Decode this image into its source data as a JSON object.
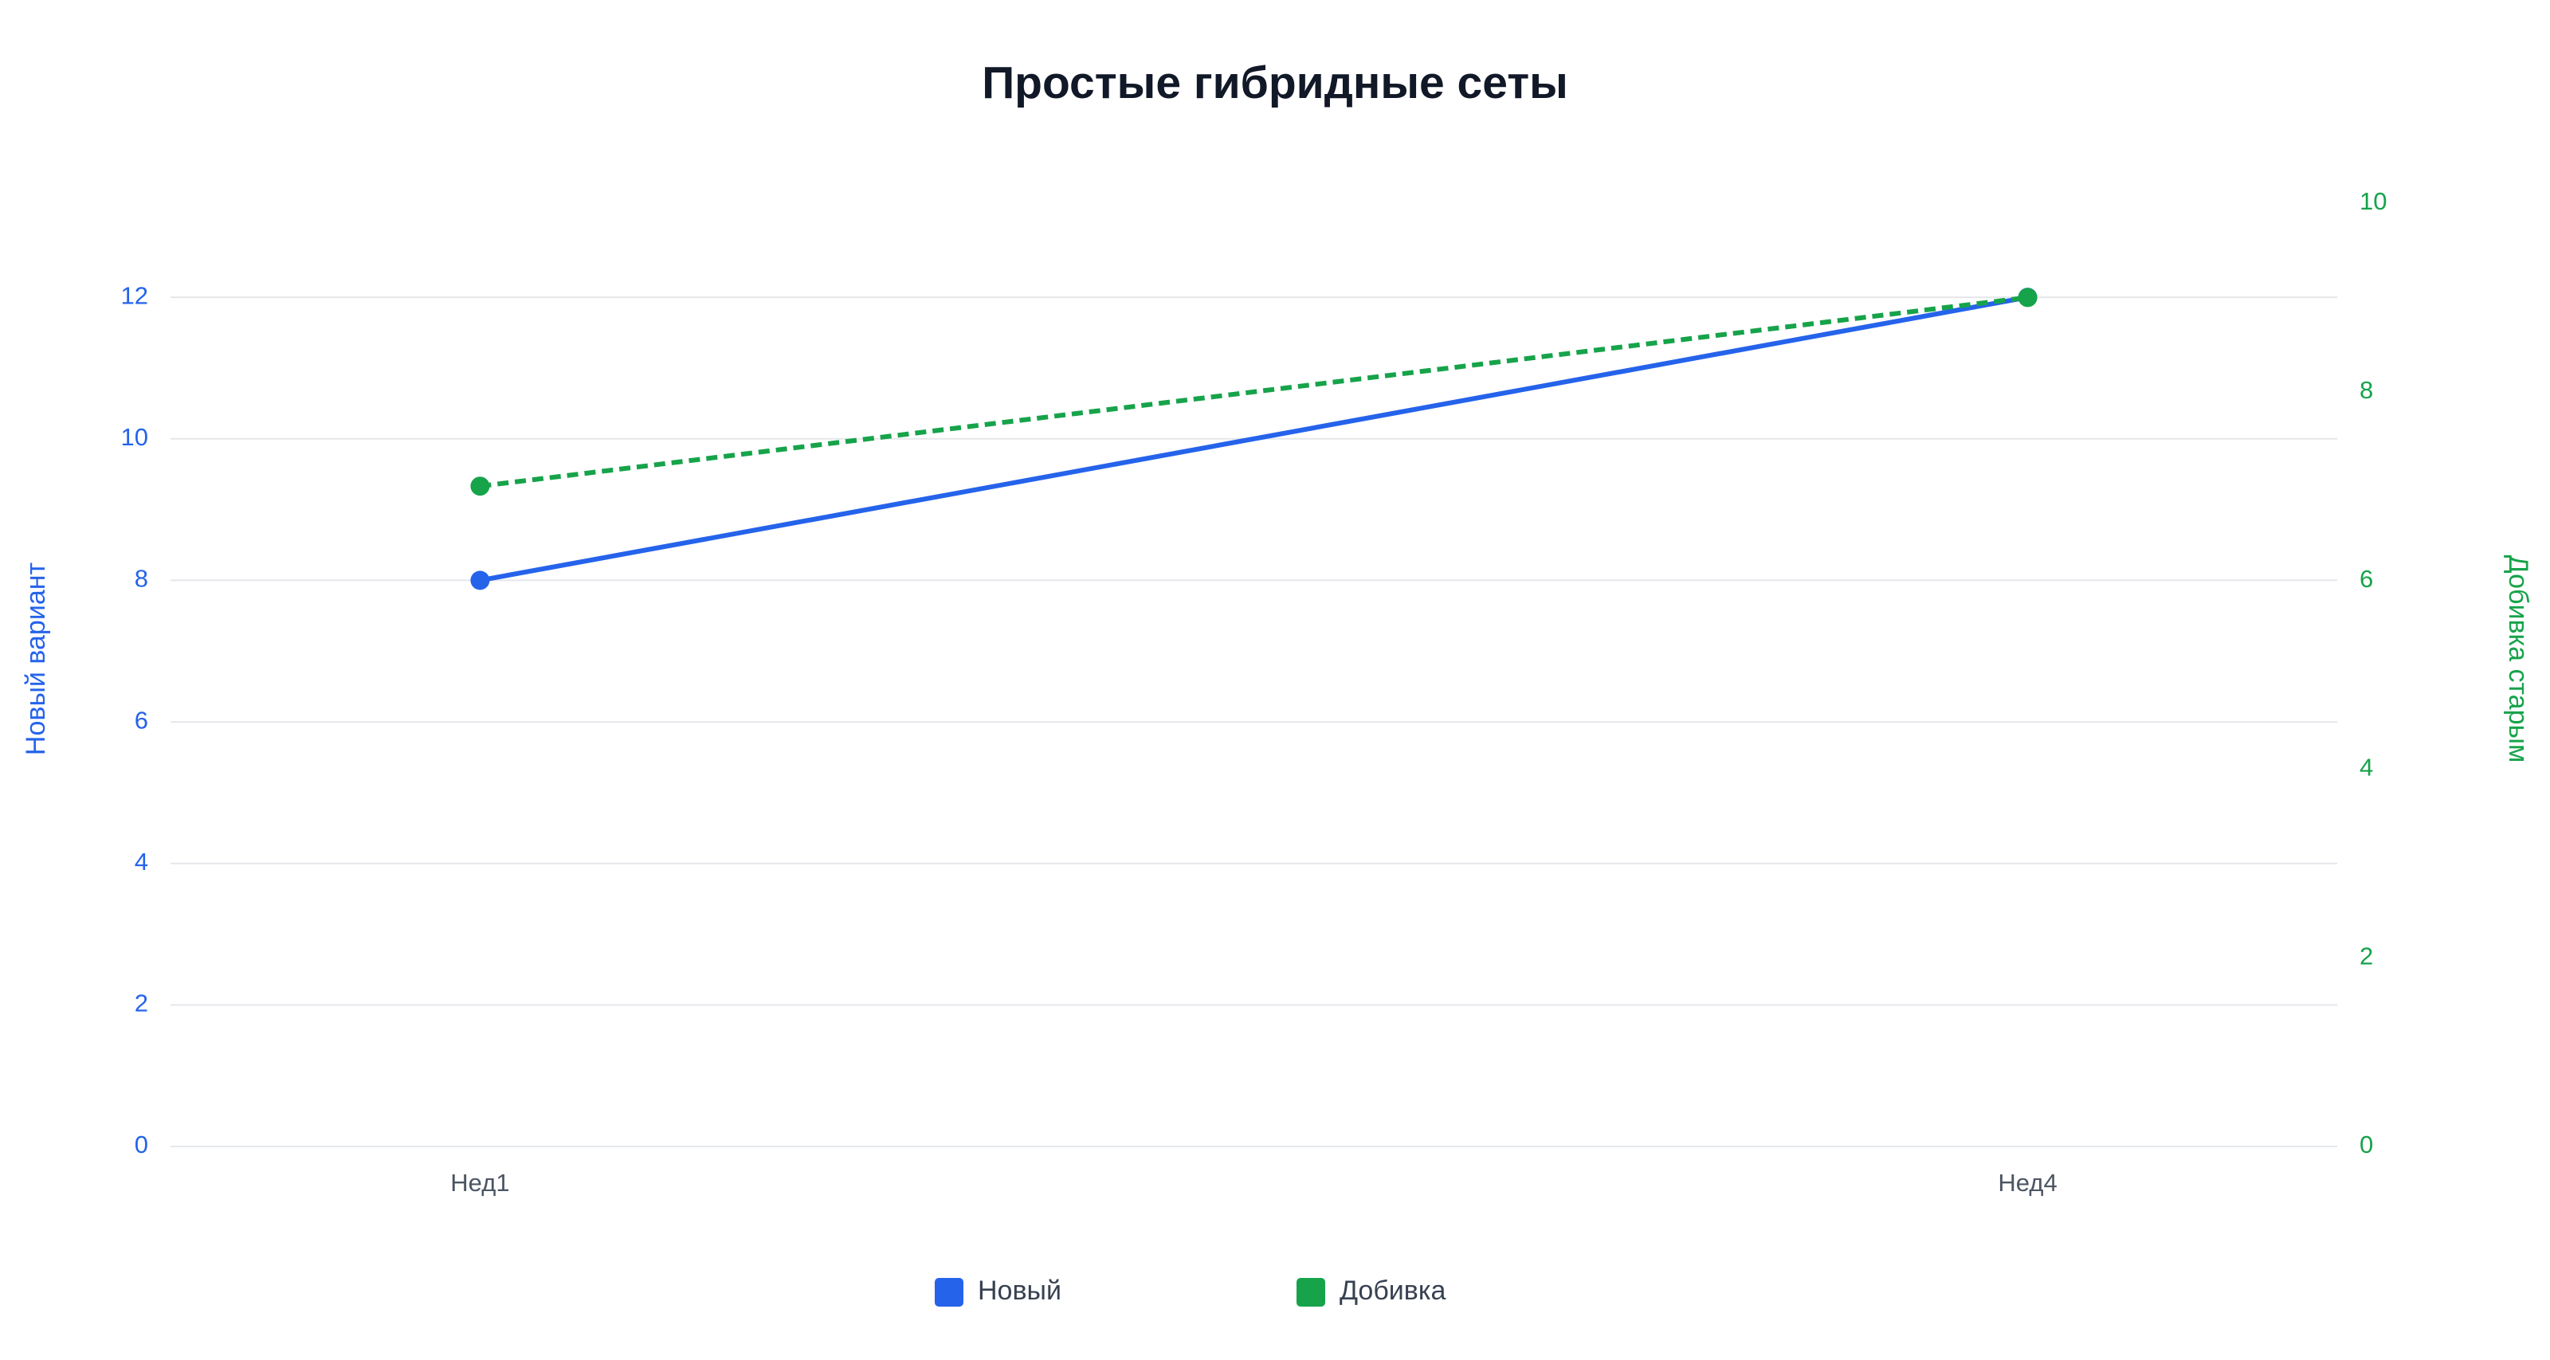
{
  "chart_data": {
    "type": "line",
    "title": "Простые гибридные сеты",
    "categories": [
      "Нед1",
      "Нед4"
    ],
    "y_label": "Новый вариант",
    "y2_label": "Добивка старым",
    "series": [
      {
        "name": "Новый",
        "color": "#2563eb",
        "values": [
          8,
          12
        ],
        "line_style": "solid"
      },
      {
        "name": "Добивка",
        "color": "#16a34a",
        "values": [
          7,
          9
        ],
        "axis": "y2",
        "line_style": "dashed"
      }
    ],
    "ylim": [
      0,
      13.33
    ],
    "yticks": [
      0,
      2,
      4,
      6,
      8,
      10,
      12
    ],
    "y2lim": [
      0,
      10
    ],
    "y2ticks": [
      0,
      2,
      4,
      6,
      8,
      10
    ],
    "grid": true,
    "legend": "bottom"
  }
}
